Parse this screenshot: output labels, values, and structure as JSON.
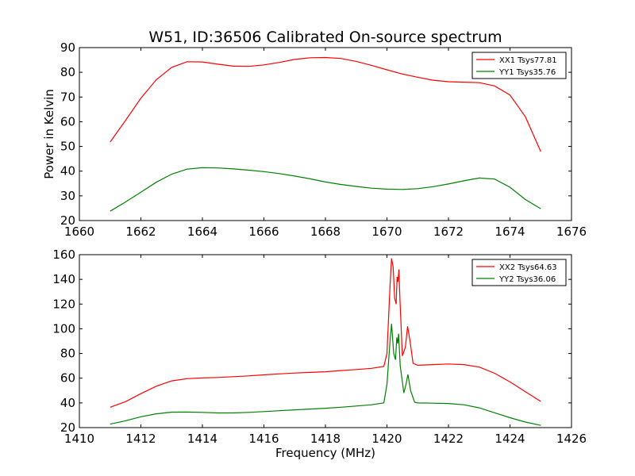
{
  "figure": {
    "title": "W51, ID:36506 Calibrated On-source spectrum"
  },
  "chart_data": [
    {
      "type": "line",
      "title": "W51, ID:36506 Calibrated On-source spectrum",
      "xlabel": "",
      "ylabel": "Power in Kelvin",
      "xlim": [
        1660,
        1676
      ],
      "ylim": [
        20,
        90
      ],
      "xticks": [
        1660,
        1662,
        1664,
        1666,
        1668,
        1670,
        1672,
        1674,
        1676
      ],
      "yticks": [
        20,
        30,
        40,
        50,
        60,
        70,
        80,
        90
      ],
      "grid": false,
      "legend": "top-right",
      "series": [
        {
          "name": "XX1 Tsys77.81",
          "color": "#ff0000",
          "points": [
            [
              1661.0,
              51.8
            ],
            [
              1661.5,
              60.5
            ],
            [
              1662.0,
              69.5
            ],
            [
              1662.5,
              77.0
            ],
            [
              1663.0,
              82.0
            ],
            [
              1663.5,
              84.3
            ],
            [
              1664.0,
              84.2
            ],
            [
              1664.5,
              83.3
            ],
            [
              1665.0,
              82.5
            ],
            [
              1665.5,
              82.4
            ],
            [
              1666.0,
              83.0
            ],
            [
              1666.5,
              84.0
            ],
            [
              1667.0,
              85.2
            ],
            [
              1667.5,
              85.9
            ],
            [
              1668.0,
              86.0
            ],
            [
              1668.5,
              85.6
            ],
            [
              1669.0,
              84.4
            ],
            [
              1669.5,
              82.8
            ],
            [
              1670.0,
              81.0
            ],
            [
              1670.5,
              79.3
            ],
            [
              1671.0,
              78.0
            ],
            [
              1671.5,
              76.8
            ],
            [
              1672.0,
              76.2
            ],
            [
              1672.5,
              76.0
            ],
            [
              1673.0,
              75.8
            ],
            [
              1673.5,
              74.5
            ],
            [
              1674.0,
              70.8
            ],
            [
              1674.5,
              62.0
            ],
            [
              1675.0,
              47.9
            ]
          ]
        },
        {
          "name": "YY1 Tsys35.76",
          "color": "#008000",
          "points": [
            [
              1661.0,
              23.8
            ],
            [
              1661.5,
              27.5
            ],
            [
              1662.0,
              31.5
            ],
            [
              1662.5,
              35.5
            ],
            [
              1663.0,
              38.8
            ],
            [
              1663.5,
              40.8
            ],
            [
              1664.0,
              41.4
            ],
            [
              1664.5,
              41.3
            ],
            [
              1665.0,
              40.9
            ],
            [
              1665.5,
              40.4
            ],
            [
              1666.0,
              39.8
            ],
            [
              1666.5,
              39.0
            ],
            [
              1667.0,
              38.0
            ],
            [
              1667.5,
              36.9
            ],
            [
              1668.0,
              35.6
            ],
            [
              1668.5,
              34.6
            ],
            [
              1669.0,
              33.8
            ],
            [
              1669.5,
              33.1
            ],
            [
              1670.0,
              32.7
            ],
            [
              1670.5,
              32.6
            ],
            [
              1671.0,
              32.9
            ],
            [
              1671.5,
              33.7
            ],
            [
              1672.0,
              34.8
            ],
            [
              1672.5,
              36.1
            ],
            [
              1673.0,
              37.2
            ],
            [
              1673.5,
              36.8
            ],
            [
              1674.0,
              33.5
            ],
            [
              1674.5,
              28.5
            ],
            [
              1675.0,
              24.8
            ]
          ]
        }
      ]
    },
    {
      "type": "line",
      "title": "",
      "xlabel": "Frequency (MHz)",
      "ylabel": "",
      "xlim": [
        1410,
        1426
      ],
      "ylim": [
        20,
        160
      ],
      "xticks": [
        1410,
        1412,
        1414,
        1416,
        1418,
        1420,
        1422,
        1424,
        1426
      ],
      "yticks": [
        20,
        40,
        60,
        80,
        100,
        120,
        140,
        160
      ],
      "grid": false,
      "legend": "top-right",
      "series": [
        {
          "name": "XX2 Tsys64.63",
          "color": "#ff0000",
          "points": [
            [
              1411.0,
              36.5
            ],
            [
              1411.5,
              41.0
            ],
            [
              1412.0,
              47.5
            ],
            [
              1412.5,
              53.5
            ],
            [
              1413.0,
              57.8
            ],
            [
              1413.5,
              59.6
            ],
            [
              1414.0,
              60.2
            ],
            [
              1414.5,
              60.6
            ],
            [
              1415.0,
              61.2
            ],
            [
              1415.5,
              61.9
            ],
            [
              1416.0,
              62.7
            ],
            [
              1416.5,
              63.5
            ],
            [
              1417.0,
              64.2
            ],
            [
              1417.5,
              64.7
            ],
            [
              1418.0,
              65.2
            ],
            [
              1418.5,
              66.2
            ],
            [
              1419.0,
              67.0
            ],
            [
              1419.5,
              68.0
            ],
            [
              1419.9,
              69.5
            ],
            [
              1420.0,
              80.0
            ],
            [
              1420.1,
              135.0
            ],
            [
              1420.15,
              157.0
            ],
            [
              1420.2,
              150.0
            ],
            [
              1420.25,
              125.0
            ],
            [
              1420.3,
              120.0
            ],
            [
              1420.33,
              142.0
            ],
            [
              1420.36,
              138.0
            ],
            [
              1420.39,
              148.0
            ],
            [
              1420.42,
              125.0
            ],
            [
              1420.5,
              78.0
            ],
            [
              1420.6,
              85.0
            ],
            [
              1420.67,
              102.0
            ],
            [
              1420.75,
              90.0
            ],
            [
              1420.85,
              72.0
            ],
            [
              1421.0,
              70.5
            ],
            [
              1421.5,
              71.0
            ],
            [
              1422.0,
              71.5
            ],
            [
              1422.5,
              71.0
            ],
            [
              1423.0,
              69.0
            ],
            [
              1423.5,
              64.0
            ],
            [
              1424.0,
              57.0
            ],
            [
              1424.5,
              49.0
            ],
            [
              1425.0,
              41.2
            ]
          ]
        },
        {
          "name": "YY2 Tsys36.06",
          "color": "#008000",
          "points": [
            [
              1411.0,
              22.8
            ],
            [
              1411.5,
              25.5
            ],
            [
              1412.0,
              28.8
            ],
            [
              1412.5,
              31.2
            ],
            [
              1413.0,
              32.5
            ],
            [
              1413.5,
              32.6
            ],
            [
              1414.0,
              32.3
            ],
            [
              1414.5,
              31.9
            ],
            [
              1415.0,
              31.9
            ],
            [
              1415.5,
              32.3
            ],
            [
              1416.0,
              33.0
            ],
            [
              1416.5,
              33.7
            ],
            [
              1417.0,
              34.4
            ],
            [
              1417.5,
              35.0
            ],
            [
              1418.0,
              35.7
            ],
            [
              1418.5,
              36.5
            ],
            [
              1419.0,
              37.5
            ],
            [
              1419.5,
              38.5
            ],
            [
              1419.9,
              40.0
            ],
            [
              1420.0,
              55.0
            ],
            [
              1420.1,
              90.0
            ],
            [
              1420.15,
              104.0
            ],
            [
              1420.22,
              80.0
            ],
            [
              1420.28,
              75.0
            ],
            [
              1420.32,
              93.0
            ],
            [
              1420.35,
              88.0
            ],
            [
              1420.38,
              96.0
            ],
            [
              1420.43,
              70.0
            ],
            [
              1420.55,
              48.0
            ],
            [
              1420.62,
              55.0
            ],
            [
              1420.68,
              63.0
            ],
            [
              1420.77,
              50.0
            ],
            [
              1420.9,
              40.5
            ],
            [
              1421.0,
              40.0
            ],
            [
              1421.5,
              39.8
            ],
            [
              1422.0,
              39.5
            ],
            [
              1422.5,
              38.5
            ],
            [
              1423.0,
              36.0
            ],
            [
              1423.5,
              32.0
            ],
            [
              1424.0,
              28.0
            ],
            [
              1424.5,
              24.5
            ],
            [
              1425.0,
              21.8
            ]
          ]
        }
      ]
    }
  ]
}
